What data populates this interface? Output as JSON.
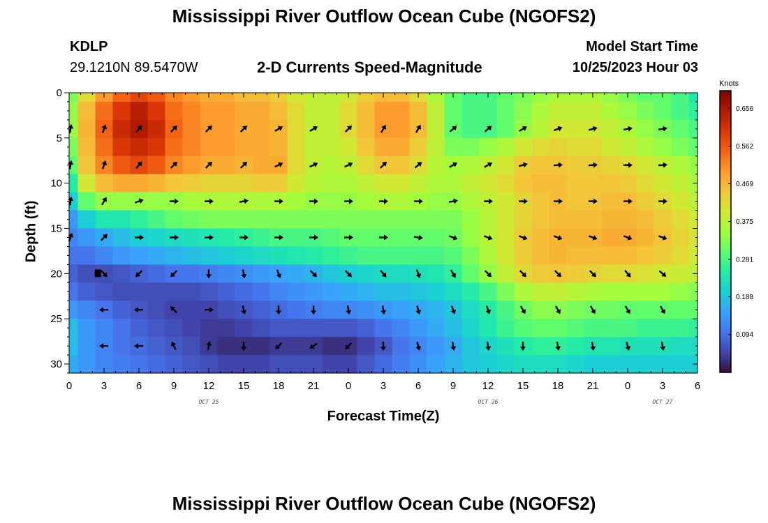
{
  "header": {
    "title": "Mississippi River Outflow Ocean Cube (NGOFS2)",
    "station_id": "KDLP",
    "station_coords": "29.1210N  89.5470W",
    "subtitle": "2-D Currents Speed-Magnitude",
    "model_start_label": "Model Start Time",
    "model_start_time": "10/25/2023 Hour 03"
  },
  "footer": {
    "title": "Mississippi River Outflow Ocean Cube (NGOFS2)"
  },
  "colors": {
    "colormap": [
      "#30123b",
      "#4145ab",
      "#4675ed",
      "#39a2fc",
      "#1bcfd4",
      "#24eca6",
      "#61fc6c",
      "#a4fc3b",
      "#d1e834",
      "#f3c63a",
      "#fe9b2d",
      "#f36315",
      "#d93806",
      "#b11901",
      "#7a0403"
    ],
    "arrow": "#000000",
    "colorbar_extra_marker": "#000000"
  },
  "chart_data": {
    "type": "heatmap",
    "title": "2-D Currents Speed-Magnitude",
    "xlabel": "Forecast Time(Z)",
    "ylabel": "Depth (ft)",
    "x_range_hours": [
      0,
      54
    ],
    "x_tick_hours": [
      0,
      3,
      6,
      9,
      12,
      15,
      18,
      21,
      24,
      27,
      30,
      33,
      36,
      39,
      42,
      45,
      48,
      51,
      54
    ],
    "x_tick_labels": [
      "0",
      "3",
      "6",
      "9",
      "12",
      "15",
      "18",
      "21",
      "0",
      "3",
      "6",
      "9",
      "12",
      "15",
      "18",
      "21",
      "0",
      "3",
      "6"
    ],
    "date_labels": [
      {
        "hour": 12,
        "text": "OCT 25"
      },
      {
        "hour": 36,
        "text": "OCT 26"
      },
      {
        "hour": 51,
        "text": "OCT 27"
      }
    ],
    "y_range_ft": [
      0,
      31
    ],
    "y_ticks": [
      0,
      5,
      10,
      15,
      20,
      25,
      30
    ],
    "colorbar": {
      "label": "Knots",
      "range": [
        0,
        0.7
      ],
      "ticks": [
        "0.656",
        "0.562",
        "0.469",
        "0.375",
        "0.281",
        "0.188",
        "0.094"
      ]
    },
    "arrow_hours": [
      0,
      3,
      6,
      9,
      12,
      15,
      18,
      21,
      24,
      27,
      30,
      33,
      36,
      39,
      42,
      45,
      48,
      51
    ],
    "arrow_depths_ft": [
      4,
      8,
      12,
      16,
      20,
      24,
      28
    ],
    "arrow_directions_deg": [
      [
        80,
        70,
        50,
        45,
        45,
        45,
        30,
        30,
        45,
        60,
        60,
        40,
        40,
        30,
        20,
        15,
        10,
        10
      ],
      [
        80,
        70,
        50,
        45,
        45,
        45,
        25,
        25,
        25,
        45,
        40,
        30,
        30,
        15,
        5,
        5,
        0,
        5
      ],
      [
        80,
        60,
        20,
        0,
        0,
        10,
        0,
        0,
        0,
        0,
        0,
        10,
        0,
        0,
        0,
        0,
        0,
        0
      ],
      [
        70,
        45,
        0,
        0,
        0,
        0,
        0,
        0,
        0,
        0,
        -10,
        -20,
        -20,
        -20,
        -20,
        -20,
        -20,
        -20
      ],
      [
        null,
        -45,
        -135,
        -135,
        -90,
        -80,
        -70,
        -45,
        -45,
        -50,
        -70,
        -60,
        -45,
        -45,
        -45,
        -45,
        -50,
        -40
      ],
      [
        null,
        180,
        180,
        135,
        0,
        -80,
        -90,
        -90,
        -80,
        -80,
        -75,
        -70,
        -70,
        -60,
        -60,
        -60,
        -60,
        -60
      ],
      [
        null,
        180,
        180,
        115,
        80,
        -90,
        -135,
        -145,
        -135,
        -90,
        -75,
        -80,
        -80,
        -90,
        -80,
        -80,
        -75,
        -80
      ]
    ],
    "speed_grid_knots": {
      "depths_ft": [
        0,
        2,
        4,
        6,
        8,
        10,
        12,
        14,
        16,
        18,
        20,
        22,
        24,
        26,
        28,
        30
      ],
      "hours": [
        0,
        1.5,
        3,
        4.5,
        6,
        7.5,
        9,
        10.5,
        12,
        13.5,
        15,
        16.5,
        18,
        19.5,
        21,
        22.5,
        24,
        25.5,
        27,
        28.5,
        30,
        31.5,
        33,
        34.5,
        36,
        37.5,
        39,
        40.5,
        42,
        43.5,
        45,
        46.5,
        48,
        49.5,
        51,
        52.5,
        54
      ],
      "values": [
        [
          0.32,
          0.42,
          0.5,
          0.55,
          0.58,
          0.56,
          0.52,
          0.5,
          0.48,
          0.48,
          0.46,
          0.46,
          0.44,
          0.4,
          0.38,
          0.38,
          0.4,
          0.44,
          0.46,
          0.46,
          0.42,
          0.36,
          0.3,
          0.28,
          0.28,
          0.3,
          0.32,
          0.34,
          0.36,
          0.36,
          0.36,
          0.34,
          0.32,
          0.3,
          0.3,
          0.28,
          0.24
        ],
        [
          0.34,
          0.46,
          0.54,
          0.6,
          0.64,
          0.6,
          0.54,
          0.52,
          0.5,
          0.5,
          0.48,
          0.48,
          0.46,
          0.42,
          0.38,
          0.38,
          0.42,
          0.46,
          0.5,
          0.5,
          0.46,
          0.38,
          0.3,
          0.28,
          0.28,
          0.3,
          0.33,
          0.36,
          0.38,
          0.38,
          0.38,
          0.36,
          0.34,
          0.32,
          0.3,
          0.28,
          0.26
        ],
        [
          0.34,
          0.47,
          0.55,
          0.62,
          0.65,
          0.62,
          0.55,
          0.52,
          0.5,
          0.5,
          0.48,
          0.48,
          0.47,
          0.42,
          0.38,
          0.38,
          0.42,
          0.46,
          0.5,
          0.5,
          0.46,
          0.38,
          0.3,
          0.28,
          0.28,
          0.3,
          0.34,
          0.37,
          0.4,
          0.4,
          0.4,
          0.38,
          0.36,
          0.34,
          0.32,
          0.3,
          0.28
        ],
        [
          0.32,
          0.46,
          0.54,
          0.6,
          0.62,
          0.6,
          0.54,
          0.52,
          0.5,
          0.5,
          0.48,
          0.48,
          0.47,
          0.42,
          0.38,
          0.38,
          0.4,
          0.45,
          0.48,
          0.48,
          0.44,
          0.38,
          0.32,
          0.32,
          0.34,
          0.36,
          0.4,
          0.42,
          0.43,
          0.42,
          0.42,
          0.4,
          0.38,
          0.36,
          0.34,
          0.32,
          0.3
        ],
        [
          0.3,
          0.45,
          0.52,
          0.56,
          0.58,
          0.56,
          0.52,
          0.5,
          0.48,
          0.48,
          0.47,
          0.48,
          0.48,
          0.42,
          0.38,
          0.37,
          0.38,
          0.42,
          0.45,
          0.45,
          0.42,
          0.37,
          0.35,
          0.36,
          0.38,
          0.4,
          0.44,
          0.45,
          0.45,
          0.44,
          0.44,
          0.43,
          0.42,
          0.4,
          0.38,
          0.36,
          0.34
        ],
        [
          0.25,
          0.4,
          0.46,
          0.48,
          0.48,
          0.47,
          0.45,
          0.44,
          0.43,
          0.43,
          0.43,
          0.44,
          0.44,
          0.4,
          0.37,
          0.36,
          0.36,
          0.38,
          0.4,
          0.4,
          0.38,
          0.36,
          0.36,
          0.38,
          0.4,
          0.42,
          0.45,
          0.46,
          0.46,
          0.45,
          0.45,
          0.45,
          0.44,
          0.42,
          0.4,
          0.38,
          0.36
        ],
        [
          0.2,
          0.3,
          0.34,
          0.34,
          0.34,
          0.34,
          0.34,
          0.35,
          0.36,
          0.36,
          0.36,
          0.36,
          0.36,
          0.35,
          0.34,
          0.34,
          0.34,
          0.35,
          0.36,
          0.36,
          0.35,
          0.34,
          0.34,
          0.36,
          0.38,
          0.4,
          0.43,
          0.45,
          0.46,
          0.45,
          0.45,
          0.46,
          0.46,
          0.44,
          0.42,
          0.4,
          0.38
        ],
        [
          0.14,
          0.2,
          0.24,
          0.24,
          0.26,
          0.28,
          0.3,
          0.31,
          0.32,
          0.32,
          0.32,
          0.32,
          0.32,
          0.32,
          0.32,
          0.32,
          0.32,
          0.32,
          0.32,
          0.32,
          0.32,
          0.32,
          0.32,
          0.34,
          0.37,
          0.4,
          0.43,
          0.45,
          0.46,
          0.46,
          0.46,
          0.47,
          0.47,
          0.46,
          0.44,
          0.42,
          0.4
        ],
        [
          0.12,
          0.14,
          0.16,
          0.18,
          0.2,
          0.21,
          0.22,
          0.23,
          0.24,
          0.25,
          0.26,
          0.27,
          0.28,
          0.28,
          0.28,
          0.29,
          0.3,
          0.3,
          0.3,
          0.3,
          0.3,
          0.3,
          0.31,
          0.34,
          0.37,
          0.4,
          0.44,
          0.46,
          0.47,
          0.47,
          0.47,
          0.48,
          0.48,
          0.47,
          0.45,
          0.43,
          0.41
        ],
        [
          0.1,
          0.1,
          0.12,
          0.14,
          0.15,
          0.16,
          0.17,
          0.18,
          0.19,
          0.2,
          0.21,
          0.22,
          0.23,
          0.24,
          0.25,
          0.26,
          0.27,
          0.28,
          0.28,
          0.28,
          0.28,
          0.28,
          0.29,
          0.32,
          0.36,
          0.4,
          0.44,
          0.46,
          0.47,
          0.46,
          0.46,
          0.46,
          0.46,
          0.45,
          0.44,
          0.42,
          0.4
        ],
        [
          0.08,
          0.06,
          0.06,
          0.07,
          0.08,
          0.09,
          0.1,
          0.1,
          0.11,
          0.12,
          0.13,
          0.14,
          0.15,
          0.16,
          0.17,
          0.19,
          0.2,
          0.21,
          0.22,
          0.22,
          0.23,
          0.24,
          0.26,
          0.3,
          0.34,
          0.38,
          0.42,
          0.44,
          0.45,
          0.44,
          0.43,
          0.42,
          0.42,
          0.41,
          0.4,
          0.39,
          0.38
        ],
        [
          0.1,
          0.08,
          0.07,
          0.06,
          0.06,
          0.06,
          0.06,
          0.06,
          0.07,
          0.08,
          0.09,
          0.1,
          0.12,
          0.13,
          0.14,
          0.15,
          0.16,
          0.17,
          0.18,
          0.18,
          0.19,
          0.2,
          0.22,
          0.25,
          0.28,
          0.32,
          0.36,
          0.38,
          0.38,
          0.37,
          0.36,
          0.35,
          0.35,
          0.35,
          0.35,
          0.34,
          0.33
        ],
        [
          0.14,
          0.12,
          0.1,
          0.08,
          0.07,
          0.06,
          0.05,
          0.05,
          0.05,
          0.06,
          0.07,
          0.08,
          0.09,
          0.1,
          0.11,
          0.12,
          0.12,
          0.13,
          0.14,
          0.15,
          0.16,
          0.17,
          0.19,
          0.22,
          0.25,
          0.28,
          0.31,
          0.33,
          0.33,
          0.32,
          0.31,
          0.31,
          0.3,
          0.3,
          0.3,
          0.3,
          0.3
        ],
        [
          0.18,
          0.14,
          0.12,
          0.1,
          0.08,
          0.07,
          0.06,
          0.05,
          0.04,
          0.04,
          0.05,
          0.06,
          0.07,
          0.07,
          0.07,
          0.07,
          0.07,
          0.08,
          0.1,
          0.12,
          0.14,
          0.16,
          0.18,
          0.21,
          0.24,
          0.27,
          0.29,
          0.3,
          0.3,
          0.29,
          0.28,
          0.28,
          0.28,
          0.27,
          0.27,
          0.27,
          0.26
        ],
        [
          0.18,
          0.14,
          0.12,
          0.1,
          0.09,
          0.08,
          0.07,
          0.06,
          0.04,
          0.03,
          0.03,
          0.03,
          0.04,
          0.04,
          0.04,
          0.03,
          0.03,
          0.05,
          0.07,
          0.1,
          0.12,
          0.14,
          0.16,
          0.19,
          0.21,
          0.23,
          0.25,
          0.26,
          0.26,
          0.25,
          0.24,
          0.24,
          0.23,
          0.23,
          0.23,
          0.22,
          0.22
        ],
        [
          0.16,
          0.14,
          0.12,
          0.11,
          0.1,
          0.09,
          0.08,
          0.07,
          0.06,
          0.05,
          0.05,
          0.05,
          0.06,
          0.06,
          0.06,
          0.05,
          0.05,
          0.07,
          0.09,
          0.11,
          0.13,
          0.15,
          0.17,
          0.19,
          0.2,
          0.21,
          0.22,
          0.22,
          0.22,
          0.21,
          0.2,
          0.2,
          0.2,
          0.2,
          0.2,
          0.2,
          0.2
        ]
      ]
    },
    "grid": false,
    "legend": "right colorbar"
  }
}
